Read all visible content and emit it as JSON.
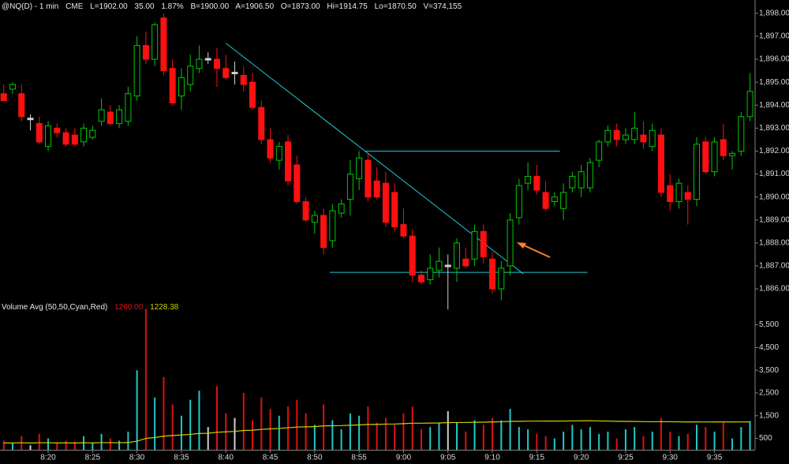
{
  "header": {
    "symbol": "@NQ(D) - 1 min",
    "exchange": "CME",
    "fields": [
      "L=1902.00",
      "35.00",
      "1.87%",
      "B=1900.00",
      "A=1906.50",
      "O=1873.00",
      "Hi=1914.75",
      "Lo=1870.50",
      "V=374,155"
    ]
  },
  "chart_data": [
    {
      "type": "candlestick",
      "x": [
        495,
        496,
        497,
        498,
        499,
        500,
        501,
        502,
        503,
        504,
        505,
        506,
        507,
        508,
        509,
        510,
        511,
        512,
        513,
        514,
        515,
        516,
        517,
        518,
        519,
        520,
        521,
        522,
        523,
        524,
        525,
        526,
        527,
        528,
        529,
        530,
        531,
        532,
        533,
        534,
        535,
        536,
        537,
        538,
        539,
        540,
        541,
        542,
        543,
        544,
        545,
        546,
        547,
        548,
        549,
        550,
        551,
        552,
        553,
        554,
        555,
        556,
        557,
        558,
        559,
        560,
        561,
        562,
        563,
        564,
        565,
        566,
        567,
        568,
        569,
        570,
        571,
        572,
        573,
        574,
        575,
        576,
        577,
        578,
        579
      ],
      "open": [
        1894.5,
        1894.7,
        1894.5,
        1893.4,
        1893.2,
        1892.2,
        1893.0,
        1892.8,
        1892.7,
        1892.4,
        1892.6,
        1893.3,
        1893.7,
        1893.2,
        1893.3,
        1894.4,
        1896.6,
        1896.0,
        1897.8,
        1895.6,
        1894.4,
        1894.9,
        1895.6,
        1896.0,
        1896.0,
        1895.6,
        1895.4,
        1895.3,
        1895.0,
        1893.9,
        1892.5,
        1891.6,
        1892.4,
        1891.4,
        1889.8,
        1888.9,
        1889.2,
        1888.1,
        1889.3,
        1889.9,
        1890.8,
        1891.6,
        1890.7,
        1890.6,
        1890.2,
        1888.8,
        1888.3,
        1886.6,
        1886.4,
        1886.8,
        1887.0,
        1886.9,
        1887.3,
        1887.3,
        1888.5,
        1887.3,
        1886.0,
        1887.0,
        1889.1,
        1890.6,
        1890.9,
        1890.2,
        1889.8,
        1889.5,
        1890.4,
        1890.4,
        1890.4,
        1891.6,
        1892.4,
        1892.9,
        1892.5,
        1892.5,
        1892.7,
        1892.2,
        1892.7,
        1890.5,
        1889.8,
        1890.2,
        1889.9,
        1892.4,
        1891.1,
        1892.5,
        1891.8,
        1892.0,
        1893.5
      ],
      "high": [
        1894.9,
        1895.0,
        1894.9,
        1893.6,
        1893.5,
        1893.3,
        1893.2,
        1893.0,
        1893.0,
        1893.2,
        1893.1,
        1894.3,
        1894.0,
        1894.0,
        1894.8,
        1897.0,
        1897.2,
        1897.6,
        1898.0,
        1896.0,
        1895.6,
        1896.2,
        1896.6,
        1896.3,
        1896.5,
        1896.2,
        1895.9,
        1895.7,
        1895.4,
        1894.2,
        1893.0,
        1892.4,
        1892.7,
        1891.8,
        1890.0,
        1889.4,
        1889.5,
        1889.7,
        1889.9,
        1891.6,
        1892.0,
        1891.9,
        1891.3,
        1891.1,
        1890.6,
        1889.5,
        1888.6,
        1886.8,
        1887.5,
        1887.8,
        1887.5,
        1888.2,
        1887.8,
        1888.8,
        1888.8,
        1887.6,
        1887.2,
        1889.3,
        1890.8,
        1891.5,
        1891.4,
        1890.7,
        1890.2,
        1890.6,
        1891.1,
        1891.4,
        1891.7,
        1892.5,
        1893.1,
        1893.2,
        1893.0,
        1893.7,
        1893.3,
        1893.2,
        1893.0,
        1891.0,
        1890.8,
        1890.5,
        1892.6,
        1892.6,
        1892.6,
        1893.2,
        1892.0,
        1893.7,
        1895.4
      ],
      "low": [
        1894.2,
        1894.5,
        1893.3,
        1892.9,
        1892.3,
        1892.0,
        1892.6,
        1892.2,
        1892.2,
        1892.2,
        1892.5,
        1893.1,
        1893.1,
        1893.0,
        1893.1,
        1894.2,
        1895.8,
        1895.7,
        1895.3,
        1894.0,
        1893.8,
        1894.6,
        1895.4,
        1895.8,
        1894.8,
        1895.1,
        1894.9,
        1894.6,
        1893.8,
        1892.3,
        1891.5,
        1891.2,
        1890.5,
        1889.7,
        1888.9,
        1888.4,
        1887.5,
        1887.8,
        1889.1,
        1889.2,
        1890.3,
        1889.8,
        1889.9,
        1888.7,
        1888.5,
        1888.2,
        1886.3,
        1886.2,
        1886.2,
        1886.5,
        1885.1,
        1886.3,
        1886.9,
        1887.0,
        1887.1,
        1885.8,
        1885.5,
        1886.6,
        1888.8,
        1890.3,
        1890.1,
        1889.4,
        1889.6,
        1889.0,
        1890.2,
        1890.0,
        1890.2,
        1891.3,
        1892.2,
        1892.2,
        1892.3,
        1892.3,
        1892.1,
        1892.0,
        1890.0,
        1889.4,
        1889.5,
        1888.8,
        1889.6,
        1891.0,
        1890.9,
        1891.6,
        1891.2,
        1891.8,
        1893.3
      ],
      "close": [
        1894.2,
        1894.9,
        1893.5,
        1893.4,
        1892.4,
        1893.1,
        1892.8,
        1892.3,
        1892.3,
        1893.0,
        1892.9,
        1893.8,
        1893.2,
        1893.8,
        1894.5,
        1896.6,
        1896.0,
        1897.5,
        1895.5,
        1894.1,
        1895.2,
        1895.7,
        1896.0,
        1896.0,
        1895.6,
        1895.2,
        1895.4,
        1894.9,
        1893.9,
        1892.5,
        1891.7,
        1892.2,
        1890.7,
        1889.8,
        1889.0,
        1889.2,
        1887.8,
        1889.4,
        1889.7,
        1891.0,
        1891.7,
        1890.0,
        1890.0,
        1888.9,
        1888.7,
        1888.3,
        1886.6,
        1886.3,
        1886.9,
        1887.2,
        1887.0,
        1888.0,
        1887.0,
        1888.5,
        1887.4,
        1886.0,
        1886.9,
        1889.0,
        1890.5,
        1890.9,
        1890.3,
        1889.5,
        1890.0,
        1890.2,
        1890.9,
        1891.1,
        1891.5,
        1892.4,
        1892.9,
        1892.5,
        1892.7,
        1893.0,
        1892.4,
        1892.9,
        1890.2,
        1889.8,
        1890.6,
        1889.9,
        1892.3,
        1891.1,
        1892.4,
        1891.8,
        1891.9,
        1893.5,
        1894.6
      ],
      "up_color": "#00c800",
      "down_color": "#ff1010",
      "even_color": "#d0d0d0",
      "xlim": [
        494.58,
        579.57
      ],
      "ylim": [
        1885.35,
        1898.58
      ],
      "yticks": [
        {
          "value": 1898,
          "label": "1,898.00"
        },
        {
          "value": 1897,
          "label": "1,897.00"
        },
        {
          "value": 1896,
          "label": "1,896.00"
        },
        {
          "value": 1895,
          "label": "1,895.00"
        },
        {
          "value": 1894,
          "label": "1,894.00"
        },
        {
          "value": 1893,
          "label": "1,893.00"
        },
        {
          "value": 1892,
          "label": "1,892.00"
        },
        {
          "value": 1891,
          "label": "1,891.00"
        },
        {
          "value": 1890,
          "label": "1,890.00"
        },
        {
          "value": 1889,
          "label": "1,889.00"
        },
        {
          "value": 1888,
          "label": "1,888.00"
        },
        {
          "value": 1887,
          "label": "1,887.00"
        },
        {
          "value": 1886,
          "label": "1,886.00"
        }
      ],
      "lines": [
        {
          "x": [
            520,
            553.5
          ],
          "y": [
            1896.7,
            1886.65
          ],
          "color": "#20c8d0"
        },
        {
          "x": [
            535.7,
            557.6
          ],
          "y": [
            1892.0,
            1892.0
          ],
          "color": "#20c8d0"
        },
        {
          "x": [
            531.7,
            560.7
          ],
          "y": [
            1886.72,
            1886.72
          ],
          "color": "#20c8d0"
        }
      ]
    },
    {
      "type": "volume",
      "title": "Volume Avg (50,50,Cyan,Red)",
      "x": [
        495,
        496,
        497,
        498,
        499,
        500,
        501,
        502,
        503,
        504,
        505,
        506,
        507,
        508,
        509,
        510,
        511,
        512,
        513,
        514,
        515,
        516,
        517,
        518,
        519,
        520,
        521,
        522,
        523,
        524,
        525,
        526,
        527,
        528,
        529,
        530,
        531,
        532,
        533,
        534,
        535,
        536,
        537,
        538,
        539,
        540,
        541,
        542,
        543,
        544,
        545,
        546,
        547,
        548,
        549,
        550,
        551,
        552,
        553,
        554,
        555,
        556,
        557,
        558,
        559,
        560,
        561,
        562,
        563,
        564,
        565,
        566,
        567,
        568,
        569,
        570,
        571,
        572,
        573,
        574,
        575,
        576,
        577,
        578,
        579
      ],
      "series": [
        {
          "type": "bar",
          "up_color": "#20c8c8",
          "down_color": "#e01010",
          "even_color": "#d0d0d0",
          "readout": "1260.00",
          "values": [
            400,
            300,
            600,
            200,
            700,
            500,
            300,
            400,
            350,
            600,
            300,
            700,
            500,
            400,
            800,
            3500,
            6200,
            2300,
            3200,
            2000,
            1500,
            2200,
            2600,
            1000,
            2800,
            1600,
            1400,
            2500,
            1300,
            2300,
            1800,
            1500,
            1900,
            2200,
            1600,
            1100,
            2000,
            1300,
            900,
            1600,
            1500,
            1900,
            1200,
            1400,
            1100,
            1600,
            1900,
            900,
            1000,
            1200,
            1700,
            1200,
            800,
            1300,
            1100,
            1400,
            1300,
            1800,
            1000,
            900,
            700,
            600,
            500,
            800,
            1100,
            900,
            1000,
            700,
            800,
            500,
            900,
            1000,
            600,
            800,
            1400,
            800,
            600,
            700,
            1100,
            1000,
            800,
            1200,
            500,
            1000,
            1260
          ]
        },
        {
          "type": "line",
          "color": "#d0d000",
          "readout": "1228.38",
          "values": [
            300,
            300,
            310,
            300,
            310,
            310,
            305,
            305,
            300,
            310,
            305,
            315,
            315,
            310,
            320,
            380,
            500,
            540,
            600,
            630,
            650,
            680,
            720,
            725,
            770,
            790,
            810,
            850,
            860,
            900,
            920,
            940,
            970,
            1000,
            1010,
            1020,
            1050,
            1060,
            1065,
            1080,
            1095,
            1115,
            1120,
            1130,
            1135,
            1150,
            1170,
            1170,
            1175,
            1180,
            1195,
            1200,
            1200,
            1210,
            1215,
            1225,
            1235,
            1250,
            1255,
            1260,
            1260,
            1262,
            1262,
            1265,
            1270,
            1275,
            1278,
            1270,
            1265,
            1255,
            1250,
            1245,
            1240,
            1235,
            1240,
            1235,
            1230,
            1225,
            1228,
            1226,
            1225,
            1228,
            1224,
            1226,
            1228.38
          ]
        }
      ],
      "xlim": [
        494.58,
        579.57
      ],
      "ylim": [
        0,
        6250
      ],
      "yticks": [
        500,
        {
          "value": 1500,
          "label": "1,500"
        },
        {
          "value": 2500,
          "label": "2,500"
        },
        {
          "value": 3500,
          "label": "3,500"
        },
        {
          "value": 4500,
          "label": "4,500"
        },
        {
          "value": 5500,
          "label": "5,500"
        }
      ],
      "xticks": [
        {
          "value": 500,
          "label": "8:20"
        },
        {
          "value": 505,
          "label": "8:25"
        },
        {
          "value": 510,
          "label": "8:30"
        },
        {
          "value": 515,
          "label": "8:35"
        },
        {
          "value": 520,
          "label": "8:40"
        },
        {
          "value": 525,
          "label": "8:45"
        },
        {
          "value": 530,
          "label": "8:50"
        },
        {
          "value": 535,
          "label": "8:55"
        },
        {
          "value": 540,
          "label": "9:00"
        },
        {
          "value": 545,
          "label": "9:05"
        },
        {
          "value": 550,
          "label": "9:10"
        },
        {
          "value": 555,
          "label": "9:15"
        },
        {
          "value": 560,
          "label": "9:20"
        },
        {
          "value": 565,
          "label": "9:25"
        },
        {
          "value": 570,
          "label": "9:30"
        },
        {
          "value": 575,
          "label": "9:35"
        }
      ]
    }
  ]
}
